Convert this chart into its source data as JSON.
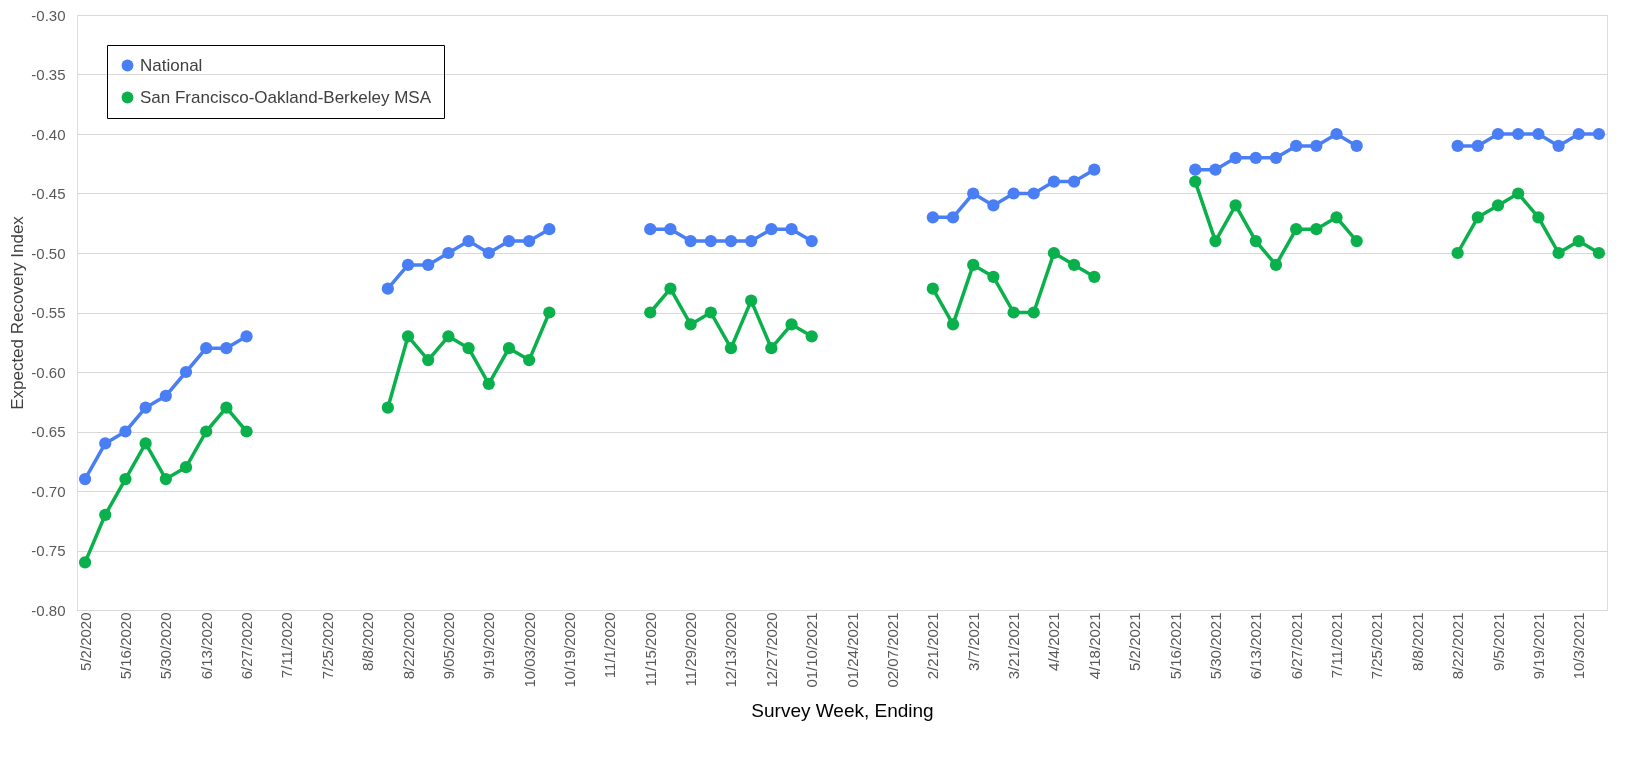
{
  "chart_data": {
    "type": "line",
    "xlabel": "Survey Week, Ending",
    "ylabel": "Expected Recovery Index",
    "categories": [
      "5/2/2020",
      null,
      "5/16/2020",
      null,
      "5/30/2020",
      null,
      "6/13/2020",
      null,
      "6/27/2020",
      null,
      "7/11/2020",
      null,
      "7/25/2020",
      null,
      "8/8/2020",
      null,
      "8/22/2020",
      null,
      "9/05/2020",
      null,
      "9/19/2020",
      null,
      "10/03/2020",
      null,
      "10/19/2020",
      null,
      "11/1/2020",
      null,
      "11/15/2020",
      null,
      "11/29/2020",
      null,
      "12/13/2020",
      null,
      "12/27/2020",
      null,
      "01/10/2021",
      null,
      "01/24/2021",
      null,
      "02/07/2021",
      null,
      "2/21/2021",
      null,
      "3/7/2021",
      null,
      "3/21/2021",
      null,
      "4/4/2021",
      null,
      "4/18/2021",
      null,
      "5/2/2021",
      null,
      "5/16/2021",
      null,
      "5/30/2021",
      null,
      "6/13/2021",
      null,
      "6/27/2021",
      null,
      "7/11/2021",
      null,
      "7/25/2021",
      null,
      "8/8/2021",
      null,
      "8/22/2021",
      null,
      "9/5/2021",
      null,
      "9/19/2021",
      null,
      "10/3/2021",
      null
    ],
    "series": [
      {
        "name": "National",
        "color": "#4a7ef5",
        "values": [
          -0.69,
          -0.66,
          -0.65,
          -0.63,
          -0.62,
          -0.6,
          -0.58,
          -0.58,
          -0.57,
          null,
          null,
          null,
          null,
          null,
          null,
          -0.53,
          -0.51,
          -0.51,
          -0.5,
          -0.49,
          -0.5,
          -0.49,
          -0.49,
          -0.48,
          null,
          null,
          null,
          null,
          -0.48,
          -0.48,
          -0.49,
          -0.49,
          -0.49,
          -0.49,
          -0.48,
          -0.48,
          -0.49,
          null,
          null,
          null,
          null,
          null,
          -0.47,
          -0.47,
          -0.45,
          -0.46,
          -0.45,
          -0.45,
          -0.44,
          -0.44,
          -0.43,
          null,
          null,
          null,
          null,
          -0.43,
          -0.43,
          -0.42,
          -0.42,
          -0.42,
          -0.41,
          -0.41,
          -0.4,
          -0.41,
          null,
          null,
          null,
          null,
          -0.41,
          -0.41,
          -0.4,
          -0.4,
          -0.4,
          -0.41,
          -0.4,
          -0.4
        ]
      },
      {
        "name": "San Francisco-Oakland-Berkeley MSA",
        "color": "#0ab04b",
        "values": [
          -0.76,
          -0.72,
          -0.69,
          -0.66,
          -0.69,
          -0.68,
          -0.65,
          -0.63,
          -0.65,
          null,
          null,
          null,
          null,
          null,
          null,
          -0.63,
          -0.57,
          -0.59,
          -0.57,
          -0.58,
          -0.61,
          -0.58,
          -0.59,
          -0.55,
          null,
          null,
          null,
          null,
          -0.55,
          -0.53,
          -0.56,
          -0.55,
          -0.58,
          -0.54,
          -0.58,
          -0.56,
          -0.57,
          null,
          null,
          null,
          null,
          null,
          -0.53,
          -0.56,
          -0.51,
          -0.52,
          -0.55,
          -0.55,
          -0.5,
          -0.51,
          -0.52,
          null,
          null,
          null,
          null,
          -0.44,
          -0.49,
          -0.46,
          -0.49,
          -0.51,
          -0.48,
          -0.48,
          -0.47,
          -0.49,
          null,
          null,
          null,
          null,
          -0.5,
          -0.47,
          -0.46,
          -0.45,
          -0.47,
          -0.5,
          -0.49,
          -0.5
        ]
      }
    ],
    "ylim": [
      -0.8,
      -0.3
    ],
    "yticks": [
      {
        "value": -0.8,
        "label": "-0.80"
      },
      {
        "value": -0.75,
        "label": "-0.75"
      },
      {
        "value": -0.7,
        "label": "-0.70"
      },
      {
        "value": -0.65,
        "label": "-0.65"
      },
      {
        "value": -0.6,
        "label": "-0.60"
      },
      {
        "value": -0.55,
        "label": "-0.55"
      },
      {
        "value": -0.5,
        "label": "-0.50"
      },
      {
        "value": -0.45,
        "label": "-0.45"
      },
      {
        "value": -0.4,
        "label": "-0.40"
      },
      {
        "value": -0.35,
        "label": "-0.35"
      },
      {
        "value": -0.3,
        "label": "-0.30"
      }
    ],
    "grid": "y",
    "legend": "top left",
    "marker": "circle",
    "line_style": "solid"
  }
}
